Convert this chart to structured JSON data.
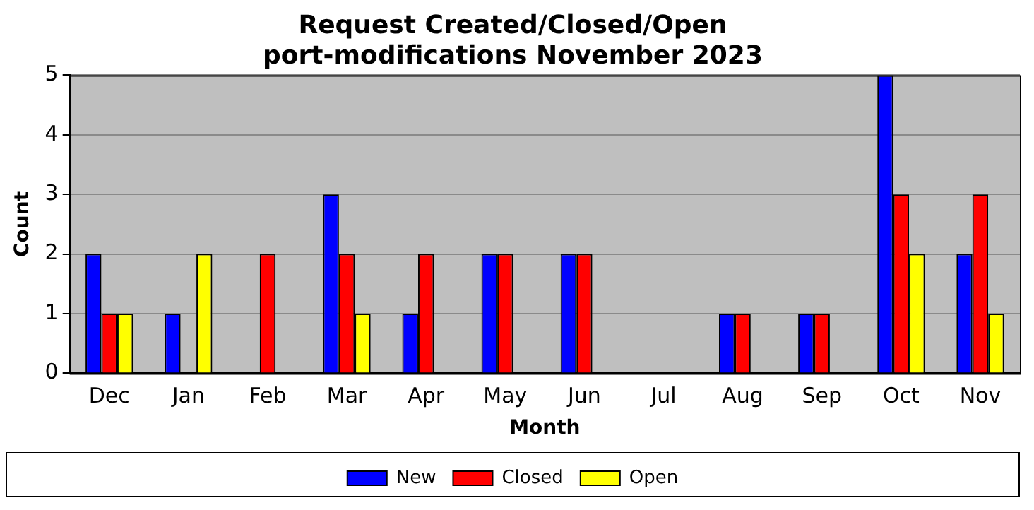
{
  "chart_data": {
    "type": "bar",
    "title": "Request Created/Closed/Open",
    "subtitle": "port-modifications November 2023",
    "xlabel": "Month",
    "ylabel": "Count",
    "categories": [
      "Dec",
      "Jan",
      "Feb",
      "Mar",
      "Apr",
      "May",
      "Jun",
      "Jul",
      "Aug",
      "Sep",
      "Oct",
      "Nov"
    ],
    "series": [
      {
        "name": "New",
        "color": "#0000ff",
        "values": [
          2,
          1,
          0,
          3,
          1,
          2,
          2,
          0,
          1,
          1,
          5,
          2
        ]
      },
      {
        "name": "Closed",
        "color": "#ff0000",
        "values": [
          1,
          0,
          2,
          2,
          2,
          2,
          2,
          0,
          1,
          1,
          3,
          3
        ]
      },
      {
        "name": "Open",
        "color": "#ffff00",
        "values": [
          1,
          2,
          0,
          1,
          0,
          0,
          0,
          0,
          0,
          0,
          2,
          1
        ]
      }
    ],
    "ylim": [
      0,
      5
    ],
    "yticks": [
      0,
      1,
      2,
      3,
      4,
      5
    ],
    "grid": "y",
    "legend": "bottom"
  }
}
